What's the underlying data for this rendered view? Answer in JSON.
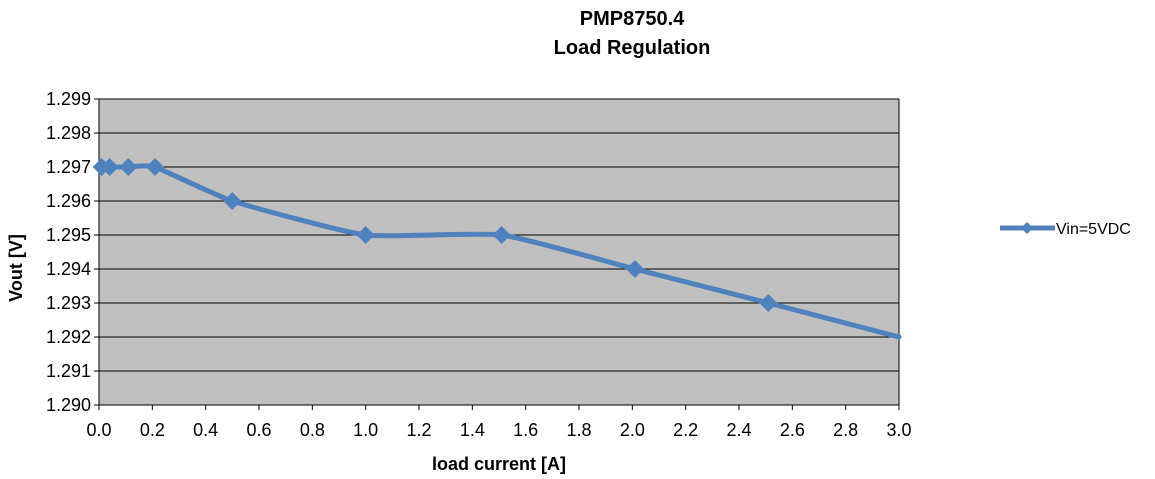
{
  "chart_data": {
    "type": "line",
    "title": [
      "PMP8750.4",
      "Load Regulation"
    ],
    "xlabel": "load current [A]",
    "ylabel": "Vout [V]",
    "xlim": [
      0.0,
      3.0
    ],
    "ylim": [
      1.29,
      1.299
    ],
    "x_ticks": [
      "0.0",
      "0.2",
      "0.4",
      "0.6",
      "0.8",
      "1.0",
      "1.2",
      "1.4",
      "1.6",
      "1.8",
      "2.0",
      "2.2",
      "2.4",
      "2.6",
      "2.8",
      "3.0"
    ],
    "y_ticks": [
      "1.299",
      "1.298",
      "1.297",
      "1.296",
      "1.295",
      "1.294",
      "1.293",
      "1.292",
      "1.291",
      "1.290"
    ],
    "grid": "horizontal",
    "plot_background": "#c0c0c0",
    "legend_position": "right",
    "series": [
      {
        "name": "Vin=5VDC",
        "color": "#4f81bd",
        "marker": "diamond",
        "smooth": true,
        "x": [
          0.01,
          0.04,
          0.11,
          0.21,
          0.5,
          1.0,
          1.51,
          2.01,
          2.51,
          3.0
        ],
        "y": [
          1.297,
          1.297,
          1.297,
          1.297,
          1.296,
          1.295,
          1.295,
          1.294,
          1.293,
          1.292
        ],
        "markers": [
          true,
          true,
          true,
          true,
          true,
          true,
          true,
          true,
          true,
          false
        ]
      }
    ]
  }
}
